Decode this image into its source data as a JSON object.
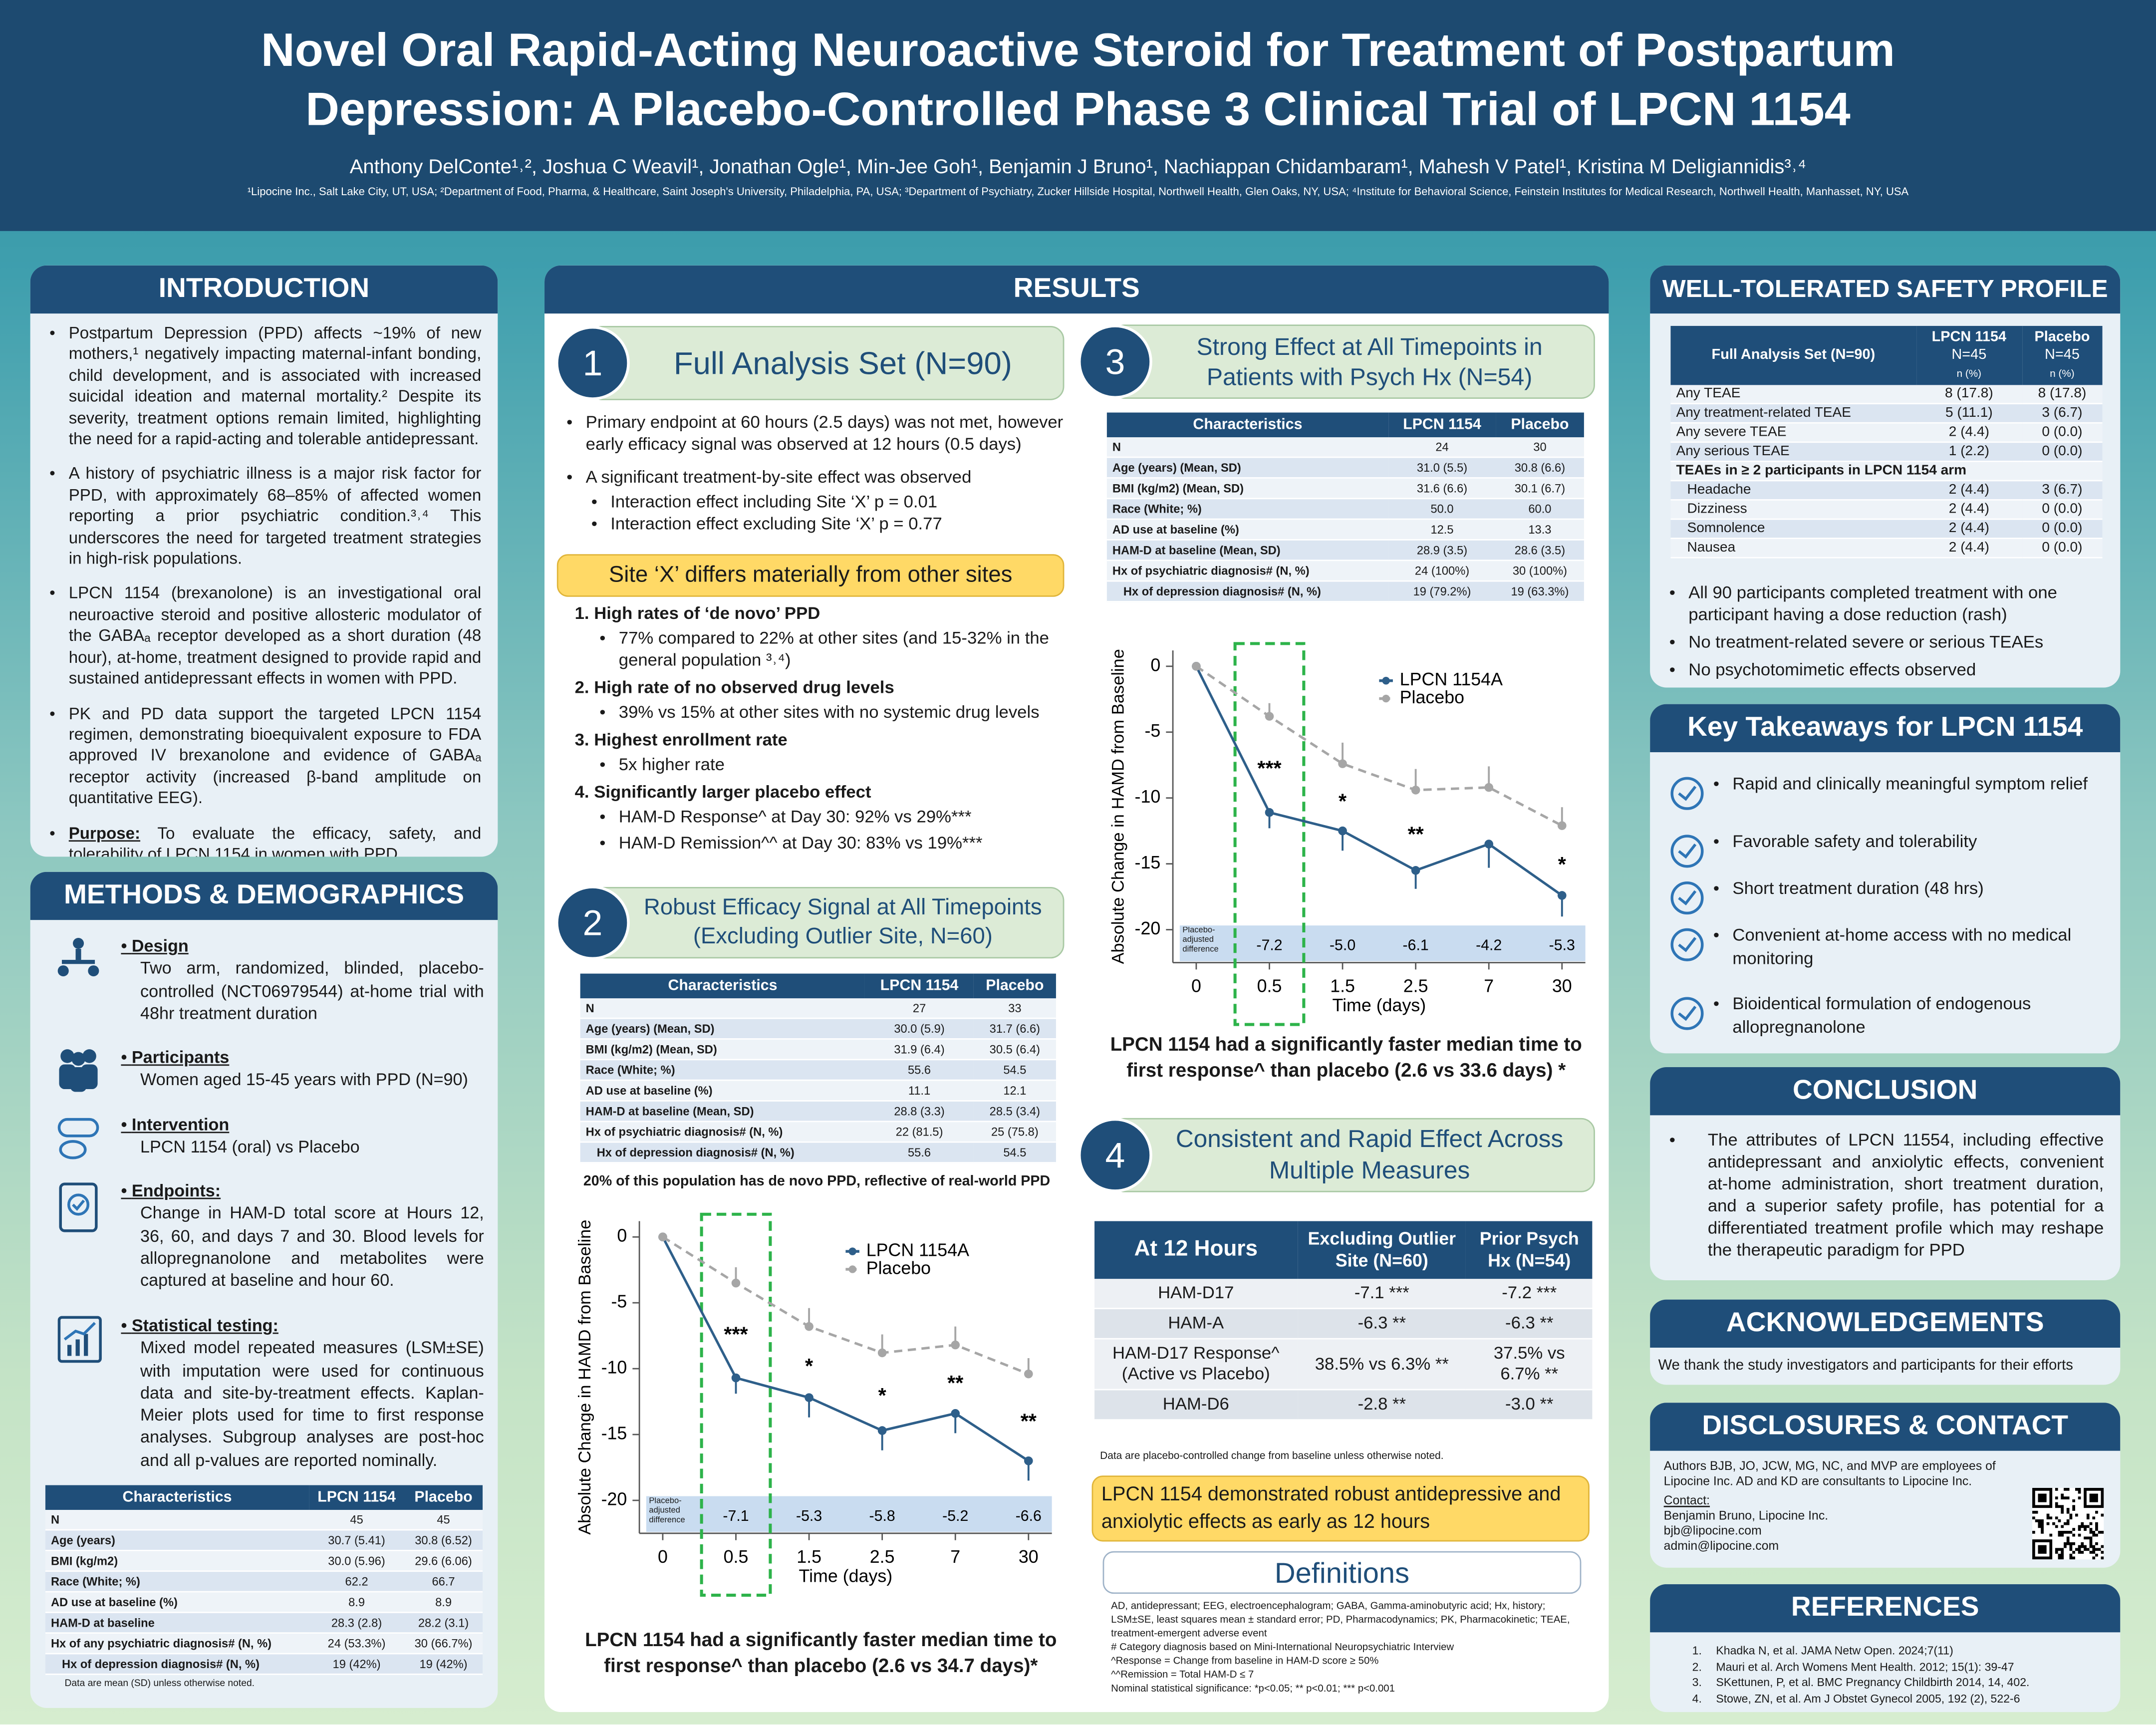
{
  "header": {
    "title": "Novel Oral Rapid-Acting Neuroactive Steroid for Treatment of Postpartum Depression: A Placebo-Controlled Phase 3 Clinical Trial of LPCN 1154",
    "authors": "Anthony DelConte¹˒², Joshua C Weavil¹, Jonathan Ogle¹, Min-Jee  Goh¹, Benjamin J Bruno¹, Nachiappan Chidambaram¹, Mahesh V Patel¹, Kristina M Deligiannidis³˒⁴",
    "affiliations": "¹Lipocine Inc., Salt Lake City, UT, USA; ²Department of Food, Pharma, & Healthcare, Saint Joseph's University, Philadelphia, PA, USA; ³Department of Psychiatry, Zucker Hillside Hospital, Northwell Health, Glen Oaks, NY, USA; ⁴Institute for Behavioral Science, Feinstein Institutes for Medical Research, Northwell Health, Manhasset, NY, USA"
  },
  "introduction": {
    "heading": "INTRODUCTION",
    "bullets": [
      "Postpartum Depression (PPD) affects ~19% of new mothers,¹ negatively impacting maternal-infant bonding, child development, and is associated with increased suicidal ideation and maternal mortality.² Despite its severity, treatment options remain limited, highlighting the need for a rapid-acting and tolerable antidepressant.",
      "A history of psychiatric illness is a major risk factor for PPD, with approximately 68–85% of affected women reporting a prior psychiatric condition.³˒⁴ This underscores the need for targeted treatment strategies in high-risk populations.",
      "LPCN 1154 (brexanolone) is an investigational oral neuroactive steroid and positive allosteric modulator of the GABAₐ receptor developed as a short duration (48 hour), at-home, treatment designed to provide rapid and sustained antidepressant effects in women with PPD.",
      "PK and PD data support the targeted LPCN 1154 regimen, demonstrating bioequivalent exposure to FDA approved IV brexanolone and evidence of GABAₐ receptor activity (increased β-band amplitude on quantitative EEG)."
    ],
    "purpose_label": "Purpose:",
    "purpose_text": "To evaluate the efficacy, safety, and tolerability of LPCN 1154 in women with PPD"
  },
  "methods": {
    "heading": "METHODS & DEMOGRAPHICS",
    "items": [
      {
        "label": "Design",
        "text": "Two arm, randomized, blinded, placebo-controlled (NCT06979544) at-home trial with 48hr treatment duration"
      },
      {
        "label": "Participants",
        "text": "Women aged 15-45 years with PPD (N=90)"
      },
      {
        "label": "Intervention",
        "text": "LPCN 1154 (oral) vs Placebo"
      },
      {
        "label": "Endpoints:",
        "text": "Change in HAM-D total score at Hours 12, 36, 60, and days 7 and 30. Blood levels for allopregnanolone and metabolites were captured at baseline and hour 60."
      },
      {
        "label": "Statistical testing:",
        "text": "Mixed model repeated measures (LSM±SE) with imputation were used for continuous data and site-by-treatment effects. Kaplan-Meier plots used for time to first response analyses. Subgroup analyses are post-hoc and all p-values are reported nominally."
      }
    ],
    "table": {
      "header": [
        "Characteristics",
        "LPCN 1154",
        "Placebo"
      ],
      "rows": [
        [
          "N",
          "45",
          "45"
        ],
        [
          "Age (years)",
          "30.7 (5.41)",
          "30.8 (6.52)"
        ],
        [
          "BMI (kg/m2)",
          "30.0 (5.96)",
          "29.6 (6.06)"
        ],
        [
          "Race (White; %)",
          "62.2",
          "66.7"
        ],
        [
          "AD use at baseline (%)",
          "8.9",
          "8.9"
        ],
        [
          "HAM-D at baseline",
          "28.3 (2.8)",
          "28.2 (3.1)"
        ],
        [
          "Hx of any psychiatric diagnosis# (N, %)",
          "24 (53.3%)",
          "30 (66.7%)"
        ],
        [
          "Hx of depression diagnosis# (N, %)",
          "19 (42%)",
          "19 (42%)"
        ]
      ],
      "note": "Data are mean (SD) unless otherwise noted."
    }
  },
  "results": {
    "heading": "RESULTS",
    "section_1": {
      "number": 1,
      "title": "Full Analysis Set (N=90)",
      "bullets": [
        {
          "text": "Primary endpoint at 60 hours (2.5 days) was not met, however early efficacy signal was observed at 12 hours (0.5 days)"
        },
        {
          "text": "A significant treatment-by-site effect was observed",
          "sub": [
            "Interaction effect including Site ‘X’  p = 0.01",
            "Interaction effect excluding Site ‘X’ p = 0.77"
          ]
        }
      ],
      "callout": "Site ‘X’ differs materially from other sites",
      "findings": [
        {
          "text": "High rates of ‘de novo’ PPD",
          "sub": [
            "77% compared to 22% at other sites (and 15-32% in the general population ³˒⁴)"
          ]
        },
        {
          "text": "High rate of no observed drug levels",
          "sub": [
            "39% vs 15% at other sites with no systemic drug levels"
          ]
        },
        {
          "text": "Highest enrollment rate",
          "sub": [
            "5x higher rate"
          ]
        },
        {
          "text": "Significantly larger placebo effect",
          "sub": [
            "HAM-D Response^ at Day 30: 92% vs 29%***",
            "HAM-D Remission^^ at Day 30: 83% vs 19%***"
          ]
        }
      ]
    },
    "section_2": {
      "number": 2,
      "title": "Robust Efficacy Signal at All Timepoints (Excluding Outlier Site, N=60)",
      "table": {
        "header": [
          "Characteristics",
          "LPCN 1154",
          "Placebo"
        ],
        "rows": [
          [
            "N",
            "27",
            "33"
          ],
          [
            "Age (years) (Mean, SD)",
            "30.0 (5.9)",
            "31.7 (6.6)"
          ],
          [
            "BMI (kg/m2) (Mean, SD)",
            "31.9 (6.4)",
            "30.5 (6.4)"
          ],
          [
            "Race (White; %)",
            "55.6",
            "54.5"
          ],
          [
            "AD use at baseline (%)",
            "11.1",
            "12.1"
          ],
          [
            "HAM-D at baseline (Mean, SD)",
            "28.8 (3.3)",
            "28.5 (3.4)"
          ],
          [
            "Hx of psychiatric diagnosis# (N, %)",
            "22 (81.5)",
            "25 (75.8)"
          ],
          [
            "Hx of depression diagnosis# (N, %)",
            "55.6",
            "54.5"
          ]
        ]
      },
      "note": "20% of this population has de novo PPD, reflective of real-world PPD",
      "caption": "LPCN 1154 had a significantly faster median time to first response^ than placebo (2.6 vs 34.7 days)*"
    },
    "section_3": {
      "number": 3,
      "title": "Strong Effect at All Timepoints in Patients with Psych Hx (N=54)",
      "table": {
        "header": [
          "Characteristics",
          "LPCN 1154",
          "Placebo"
        ],
        "rows": [
          [
            "N",
            "24",
            "30"
          ],
          [
            "Age (years) (Mean, SD)",
            "31.0 (5.5)",
            "30.8 (6.6)"
          ],
          [
            "BMI (kg/m2) (Mean, SD)",
            "31.6 (6.6)",
            "30.1 (6.7)"
          ],
          [
            "Race (White; %)",
            "50.0",
            "60.0"
          ],
          [
            "AD use at baseline (%)",
            "12.5",
            "13.3"
          ],
          [
            "HAM-D at baseline (Mean, SD)",
            "28.9 (3.5)",
            "28.6 (3.5)"
          ],
          [
            "Hx of psychiatric diagnosis# (N, %)",
            "24 (100%)",
            "30 (100%)"
          ],
          [
            "Hx of depression diagnosis# (N, %)",
            "19 (79.2%)",
            "19 (63.3%)"
          ]
        ]
      },
      "caption": "LPCN 1154 had a significantly faster median time to first response^ than placebo (2.6 vs 33.6 days) *"
    },
    "section_4": {
      "number": 4,
      "title": "Consistent and Rapid Effect Across Multiple Measures",
      "table": {
        "header": [
          "At 12 Hours",
          "Excluding Outlier Site (N=60)",
          "Prior Psych Hx (N=54)"
        ],
        "rows": [
          [
            "HAM-D17",
            "-7.1 ***",
            "-7.2 ***"
          ],
          [
            "HAM-A",
            "-6.3 **",
            "-6.3 **"
          ],
          [
            "HAM-D17 Response^ (Active vs Placebo)",
            "38.5% vs 6.3% **",
            "37.5% vs 6.7% **"
          ],
          [
            "HAM-D6",
            "-2.8 **",
            "-3.0 **"
          ]
        ],
        "note": "Data are placebo-controlled change from baseline unless otherwise noted."
      },
      "callout": "LPCN 1154 demonstrated robust antidepressive and anxiolytic effects as early as 12 hours",
      "definitions_heading": "Definitions",
      "definitions": [
        "AD, antidepressant; EEG, electroencephalogram; GABA, Gamma-aminobutyric acid; Hx, history; LSM±SE, least squares mean ± standard error; PD, Pharmacodynamics; PK, Pharmacokinetic; TEAE, treatment-emergent adverse event",
        "# Category diagnosis based on Mini-International Neuropsychiatric Interview",
        "^Response = Change from baseline in HAM-D score ≥ 50%",
        "^^Remission = Total HAM-D ≤ 7",
        "Nominal statistical significance: *p<0.05; ** p<0.01; *** p<0.001"
      ]
    }
  },
  "chart_data": [
    {
      "type": "line",
      "categories": [
        "0",
        "0.5",
        "1.5",
        "2.5",
        "7",
        "30"
      ],
      "x_label": "Time (days)",
      "y_label": "Absolute Change in HAMD from Baseline",
      "ylim": [
        -22.5,
        1.2
      ],
      "yticks": [
        0,
        -5,
        -10,
        -15,
        -20
      ],
      "legend": "upper right",
      "series": [
        {
          "name": "LPCN 1154A",
          "color": "#2e5f8a",
          "line_style": "solid",
          "error_bars": "lower",
          "values": [
            0,
            -10.7,
            -12.2,
            -14.7,
            -13.4,
            -17.0
          ],
          "errors": [
            null,
            1.2,
            1.5,
            1.5,
            1.5,
            1.5
          ]
        },
        {
          "name": "Placebo",
          "color": "#a6a6a6",
          "line_style": "dashed",
          "error_bars": "upper",
          "values": [
            0,
            -3.5,
            -6.8,
            -8.8,
            -8.2,
            -10.4
          ],
          "errors": [
            null,
            1.2,
            1.4,
            1.4,
            1.4,
            1.2
          ]
        }
      ],
      "annotations": [
        null,
        "***",
        "*",
        "*",
        "**",
        "**"
      ],
      "difference_label": "Placebo-adjusted difference",
      "differences": [
        null,
        "-7.1",
        "-5.3",
        "-5.8",
        "-5.2",
        "-6.6"
      ]
    },
    {
      "type": "line",
      "categories": [
        "0",
        "0.5",
        "1.5",
        "2.5",
        "7",
        "30"
      ],
      "x_label": "Time (days)",
      "y_label": "Absolute Change in HAMD from Baseline",
      "ylim": [
        -22.5,
        1.2
      ],
      "yticks": [
        0,
        -5,
        -10,
        -15,
        -20
      ],
      "legend": "upper right",
      "series": [
        {
          "name": "LPCN 1154A",
          "color": "#2e5f8a",
          "line_style": "solid",
          "error_bars": "lower",
          "values": [
            0,
            -11.1,
            -12.5,
            -15.5,
            -13.5,
            -17.4
          ],
          "errors": [
            null,
            1.2,
            1.5,
            1.4,
            1.8,
            1.6
          ]
        },
        {
          "name": "Placebo",
          "color": "#a6a6a6",
          "line_style": "dashed",
          "error_bars": "upper",
          "values": [
            0,
            -3.8,
            -7.4,
            -9.4,
            -9.2,
            -12.1
          ],
          "errors": [
            null,
            1.0,
            1.6,
            1.6,
            1.6,
            1.4
          ]
        }
      ],
      "annotations": [
        null,
        "***",
        "*",
        "**",
        null,
        "*"
      ],
      "difference_label": "Placebo-adjusted difference",
      "differences": [
        null,
        "-7.2",
        "-5.0",
        "-6.1",
        "-4.2",
        "-5.3"
      ]
    }
  ],
  "safety": {
    "heading": "WELL-TOLERATED SAFETY PROFILE",
    "table": {
      "header": [
        "Full Analysis Set (N=90)",
        [
          "LPCN 1154",
          "N=45",
          "n (%)"
        ],
        [
          "Placebo",
          "N=45",
          "n (%)"
        ]
      ],
      "rows": [
        [
          "Any TEAE",
          "8 (17.8)",
          "8 (17.8)"
        ],
        [
          "Any treatment-related TEAE",
          "5 (11.1)",
          "3 (6.7)"
        ],
        [
          "Any severe TEAE",
          "2 (4.4)",
          "0 (0.0)"
        ],
        [
          "Any serious TEAE",
          "1 (2.2)",
          "0 (0.0)"
        ]
      ],
      "group": "TEAEs in ≥ 2 participants in LPCN 1154 arm",
      "group_rows": [
        [
          "Headache",
          "2 (4.4)",
          "3 (6.7)"
        ],
        [
          "Dizziness",
          "2 (4.4)",
          "0 (0.0)"
        ],
        [
          "Somnolence",
          "2 (4.4)",
          "0 (0.0)"
        ],
        [
          "Nausea",
          "2 (4.4)",
          "0 (0.0)"
        ]
      ]
    },
    "bullets": [
      "All 90 participants completed treatment with one participant having a dose reduction (rash)",
      "No treatment-related severe or serious TEAEs",
      "No psychotomimetic effects observed"
    ]
  },
  "takeaways": {
    "heading": "Key Takeaways for LPCN 1154",
    "items": [
      "Rapid and clinically meaningful symptom relief",
      "Favorable safety and tolerability",
      "Short treatment duration (48 hrs)",
      "Convenient at-home access with no medical monitoring",
      "Bioidentical formulation of endogenous allopregnanolone"
    ]
  },
  "conclusion": {
    "heading": "CONCLUSION",
    "text": "The attributes of LPCN 11554, including effective antidepressant and anxiolytic effects, convenient at-home administration, short treatment duration, and a superior safety profile, has potential for a differentiated treatment profile which may reshape the therapeutic paradigm for PPD"
  },
  "acknowledgements": {
    "heading": "ACKNOWLEDGEMENTS",
    "text": "We thank the study investigators and participants for their efforts"
  },
  "disclosures": {
    "heading": "DISCLOSURES & CONTACT",
    "text": "Authors BJB, JO, JCW, MG, NC, and MVP are employees of Lipocine Inc. AD and KD are consultants to Lipocine Inc.",
    "contact_label": "Contact:",
    "contact": [
      "Benjamin Bruno, Lipocine Inc.",
      "bjb@lipocine.com",
      "admin@lipocine.com"
    ]
  },
  "references": {
    "heading": "REFERENCES",
    "items": [
      "Khadka N, et al. JAMA Netw Open. 2024;7(11)",
      "Mauri et al. Arch Womens Ment Health. 2012; 15(1): 39-47",
      "SKettunen, P, et al. BMC Pregnancy Childbirth 2014, 14, 402.",
      "Stowe, ZN, et al. Am J Obstet Gynecol 2005, 192 (2), 522-6"
    ]
  }
}
